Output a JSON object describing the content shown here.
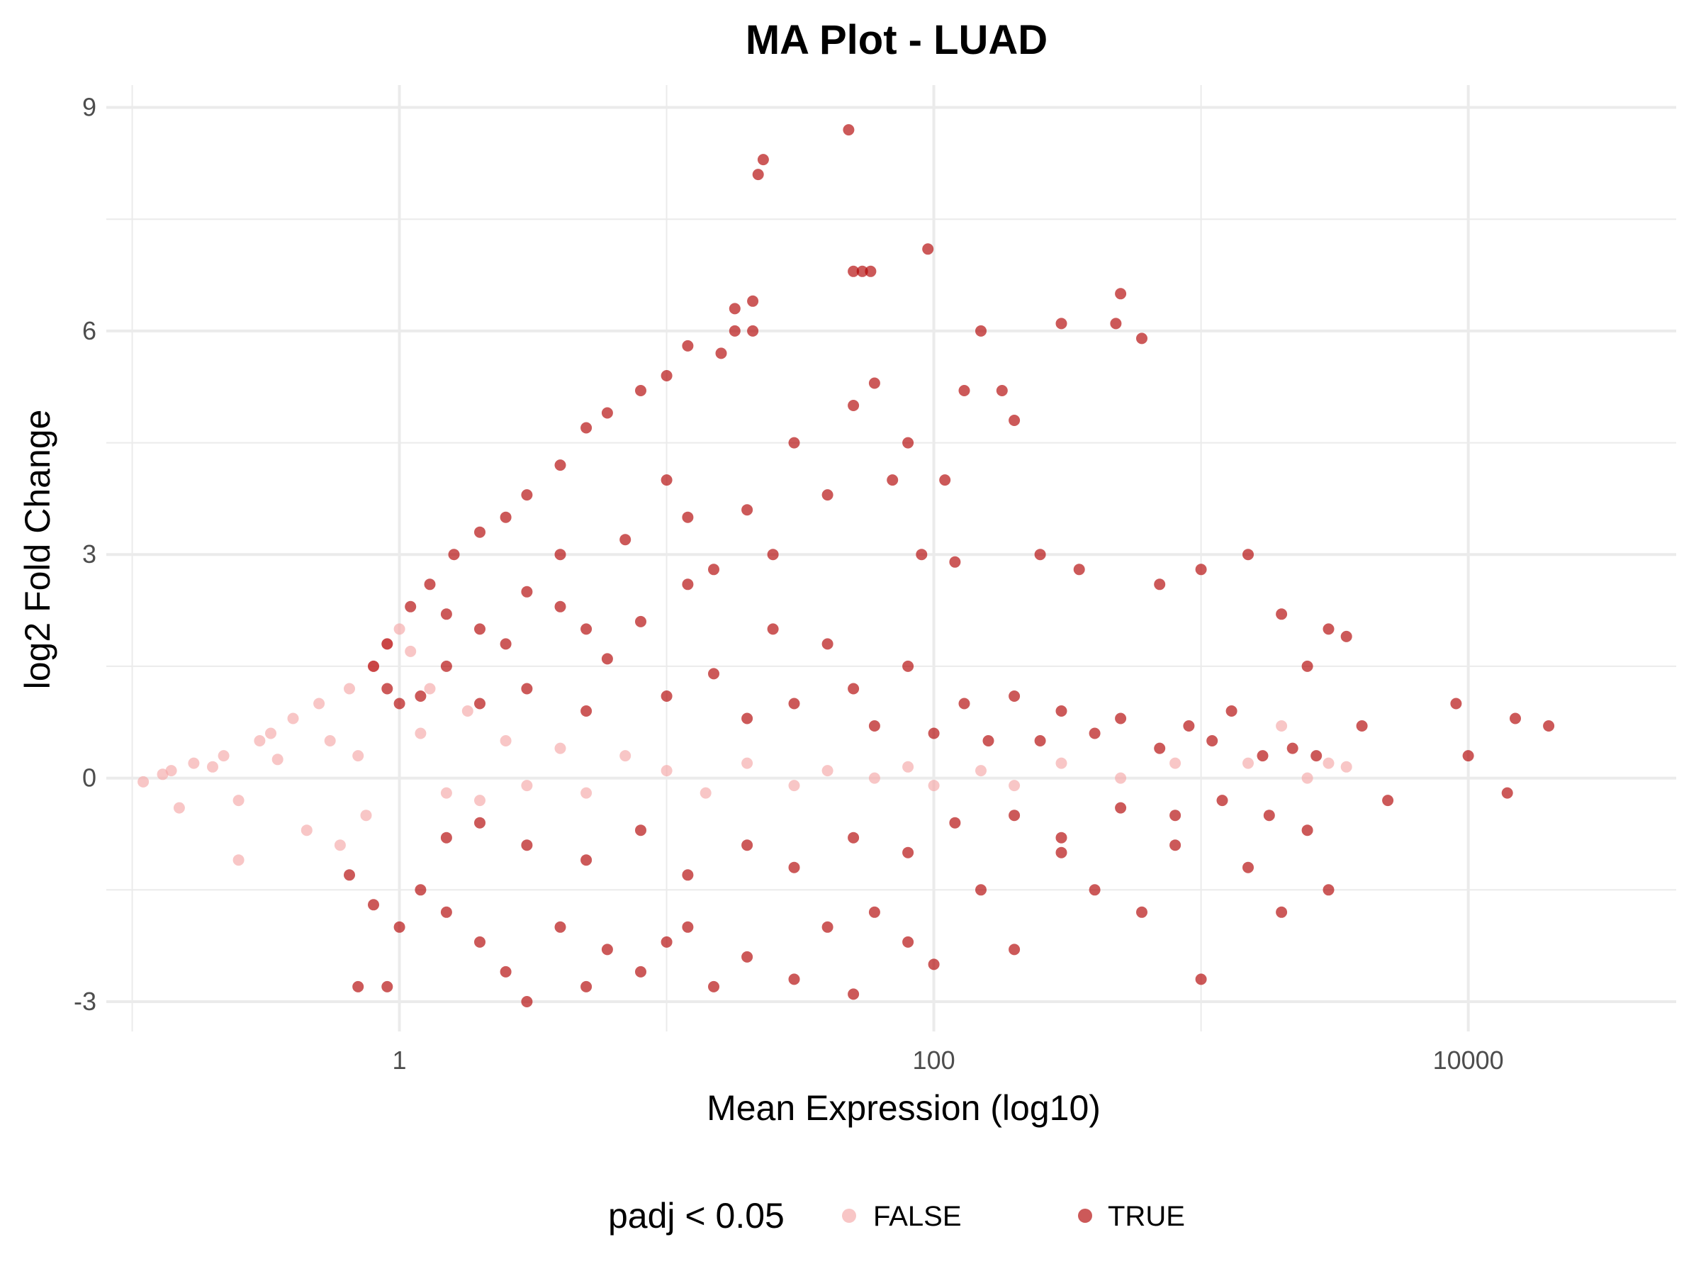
{
  "chart_data": {
    "type": "scatter",
    "title": "MA Plot - LUAD",
    "xlabel": "Mean Expression (log10)",
    "ylabel": "log2 Fold Change",
    "x_scale": "log10",
    "xlim": [
      0.08,
      60000
    ],
    "ylim": [
      -3.4,
      9.3
    ],
    "x_ticks": [
      1,
      100,
      10000
    ],
    "x_tick_labels": [
      "1",
      "100",
      "10000"
    ],
    "y_ticks": [
      -3,
      0,
      3,
      6,
      9
    ],
    "y_tick_labels": [
      "-3",
      "0",
      "3",
      "6",
      "9"
    ],
    "grid": true,
    "legend": {
      "title": "padj < 0.05",
      "position": "bottom",
      "entries": [
        "FALSE",
        "TRUE"
      ]
    },
    "colors": {
      "FALSE": "#f4a7a7",
      "TRUE": "#b00000"
    },
    "series": [
      {
        "name": "FALSE",
        "points": [
          [
            0.11,
            -0.05
          ],
          [
            0.13,
            0.05
          ],
          [
            0.14,
            0.1
          ],
          [
            0.15,
            -0.4
          ],
          [
            0.17,
            0.2
          ],
          [
            0.2,
            0.15
          ],
          [
            0.22,
            0.3
          ],
          [
            0.25,
            -0.3
          ],
          [
            0.25,
            -1.1
          ],
          [
            0.3,
            0.5
          ],
          [
            0.33,
            0.6
          ],
          [
            0.35,
            0.25
          ],
          [
            0.4,
            0.8
          ],
          [
            0.45,
            -0.7
          ],
          [
            0.5,
            1.0
          ],
          [
            0.55,
            0.5
          ],
          [
            0.6,
            -0.9
          ],
          [
            0.65,
            1.2
          ],
          [
            0.7,
            0.3
          ],
          [
            0.75,
            -0.5
          ],
          [
            0.8,
            1.5
          ],
          [
            0.9,
            1.8
          ],
          [
            1.0,
            2.0
          ],
          [
            1.1,
            1.7
          ],
          [
            1.2,
            0.6
          ],
          [
            1.3,
            1.2
          ],
          [
            1.5,
            -0.2
          ],
          [
            1.8,
            0.9
          ],
          [
            2.0,
            -0.3
          ],
          [
            2.5,
            0.5
          ],
          [
            3.0,
            -0.1
          ],
          [
            4.0,
            0.4
          ],
          [
            5.0,
            -0.2
          ],
          [
            7.0,
            0.3
          ],
          [
            10.0,
            0.1
          ],
          [
            14.0,
            -0.2
          ],
          [
            20.0,
            0.2
          ],
          [
            30.0,
            -0.1
          ],
          [
            40.0,
            0.1
          ],
          [
            60.0,
            0.0
          ],
          [
            80.0,
            0.15
          ],
          [
            100.0,
            -0.1
          ],
          [
            150.0,
            0.1
          ],
          [
            200.0,
            -0.1
          ],
          [
            300.0,
            0.2
          ],
          [
            500.0,
            0.0
          ],
          [
            800.0,
            0.2
          ],
          [
            1500.0,
            0.2
          ],
          [
            2000.0,
            0.7
          ],
          [
            2500.0,
            0.0
          ],
          [
            3000.0,
            0.2
          ],
          [
            3500.0,
            0.15
          ]
        ]
      },
      {
        "name": "TRUE",
        "points": [
          [
            48,
            8.7
          ],
          [
            22,
            8.1
          ],
          [
            23,
            8.3
          ],
          [
            95,
            7.1
          ],
          [
            58,
            6.8
          ],
          [
            54,
            6.8
          ],
          [
            50,
            6.8
          ],
          [
            18,
            6.3
          ],
          [
            21,
            6.4
          ],
          [
            21,
            6.0
          ],
          [
            18,
            6.0
          ],
          [
            16,
            5.7
          ],
          [
            12,
            5.8
          ],
          [
            10,
            5.4
          ],
          [
            8,
            5.2
          ],
          [
            6,
            4.9
          ],
          [
            5,
            4.7
          ],
          [
            4,
            4.2
          ],
          [
            3,
            3.8
          ],
          [
            2.5,
            3.5
          ],
          [
            2,
            3.3
          ],
          [
            1.6,
            3.0
          ],
          [
            1.3,
            2.6
          ],
          [
            1.1,
            2.3
          ],
          [
            0.9,
            1.8
          ],
          [
            0.8,
            1.5
          ],
          [
            0.9,
            1.2
          ],
          [
            1.0,
            1.0
          ],
          [
            1.5,
            1.5
          ],
          [
            2,
            2.0
          ],
          [
            3,
            2.5
          ],
          [
            4,
            3.0
          ],
          [
            5,
            2.0
          ],
          [
            7,
            3.2
          ],
          [
            10,
            4.0
          ],
          [
            12,
            3.5
          ],
          [
            15,
            2.8
          ],
          [
            20,
            3.6
          ],
          [
            25,
            3.0
          ],
          [
            30,
            4.5
          ],
          [
            40,
            3.8
          ],
          [
            50,
            5.0
          ],
          [
            60,
            5.3
          ],
          [
            70,
            4.0
          ],
          [
            80,
            4.5
          ],
          [
            90,
            3.0
          ],
          [
            110,
            4.0
          ],
          [
            120,
            2.9
          ],
          [
            130,
            5.2
          ],
          [
            150,
            6.0
          ],
          [
            180,
            5.2
          ],
          [
            200,
            4.8
          ],
          [
            250,
            3.0
          ],
          [
            300,
            6.1
          ],
          [
            350,
            2.8
          ],
          [
            500,
            6.5
          ],
          [
            480,
            6.1
          ],
          [
            600,
            5.9
          ],
          [
            700,
            2.6
          ],
          [
            1000,
            2.8
          ],
          [
            1500,
            3.0
          ],
          [
            2000,
            2.2
          ],
          [
            2500,
            1.5
          ],
          [
            3000,
            2.0
          ],
          [
            3500,
            1.9
          ],
          [
            4000,
            0.7
          ],
          [
            9000,
            1.0
          ],
          [
            10000,
            0.3
          ],
          [
            15000,
            0.8
          ],
          [
            20000,
            0.7
          ],
          [
            14000,
            -0.2
          ],
          [
            5000,
            -0.3
          ],
          [
            3000,
            -1.5
          ],
          [
            2000,
            -1.8
          ],
          [
            1500,
            -1.2
          ],
          [
            1000,
            -2.7
          ],
          [
            800,
            -0.9
          ],
          [
            600,
            -1.8
          ],
          [
            400,
            -1.5
          ],
          [
            300,
            -1.0
          ],
          [
            200,
            -2.3
          ],
          [
            150,
            -1.5
          ],
          [
            100,
            -2.5
          ],
          [
            80,
            -2.2
          ],
          [
            60,
            -1.8
          ],
          [
            50,
            -2.9
          ],
          [
            40,
            -2.0
          ],
          [
            30,
            -2.7
          ],
          [
            20,
            -2.4
          ],
          [
            15,
            -2.8
          ],
          [
            12,
            -2.0
          ],
          [
            10,
            -2.2
          ],
          [
            8,
            -2.6
          ],
          [
            6,
            -2.3
          ],
          [
            5,
            -2.8
          ],
          [
            4,
            -2.0
          ],
          [
            3,
            -3.0
          ],
          [
            2.5,
            -2.6
          ],
          [
            2,
            -2.2
          ],
          [
            1.5,
            -1.8
          ],
          [
            1.2,
            -1.5
          ],
          [
            1.0,
            -2.0
          ],
          [
            0.8,
            -1.7
          ],
          [
            0.7,
            -2.8
          ],
          [
            0.65,
            -1.3
          ],
          [
            0.9,
            -2.8
          ],
          [
            1.5,
            -0.8
          ],
          [
            2,
            -0.6
          ],
          [
            3,
            -0.9
          ],
          [
            5,
            -1.1
          ],
          [
            8,
            -0.7
          ],
          [
            12,
            -1.3
          ],
          [
            20,
            -0.9
          ],
          [
            30,
            -1.2
          ],
          [
            50,
            -0.8
          ],
          [
            80,
            -1.0
          ],
          [
            120,
            -0.6
          ],
          [
            200,
            -0.5
          ],
          [
            300,
            -0.8
          ],
          [
            500,
            -0.4
          ],
          [
            800,
            -0.5
          ],
          [
            1200,
            -0.3
          ],
          [
            1800,
            -0.5
          ],
          [
            2500,
            -0.7
          ],
          [
            1.2,
            1.1
          ],
          [
            1.5,
            2.2
          ],
          [
            2,
            1.0
          ],
          [
            2.5,
            1.8
          ],
          [
            3,
            1.2
          ],
          [
            4,
            2.3
          ],
          [
            5,
            0.9
          ],
          [
            6,
            1.6
          ],
          [
            8,
            2.1
          ],
          [
            10,
            1.1
          ],
          [
            12,
            2.6
          ],
          [
            15,
            1.4
          ],
          [
            20,
            0.8
          ],
          [
            25,
            2.0
          ],
          [
            30,
            1.0
          ],
          [
            40,
            1.8
          ],
          [
            50,
            1.2
          ],
          [
            60,
            0.7
          ],
          [
            80,
            1.5
          ],
          [
            100,
            0.6
          ],
          [
            130,
            1.0
          ],
          [
            160,
            0.5
          ],
          [
            200,
            1.1
          ],
          [
            250,
            0.5
          ],
          [
            300,
            0.9
          ],
          [
            400,
            0.6
          ],
          [
            500,
            0.8
          ],
          [
            700,
            0.4
          ],
          [
            900,
            0.7
          ],
          [
            1100,
            0.5
          ],
          [
            1300,
            0.9
          ],
          [
            1700,
            0.3
          ],
          [
            2200,
            0.4
          ],
          [
            2700,
            0.3
          ]
        ]
      }
    ]
  }
}
